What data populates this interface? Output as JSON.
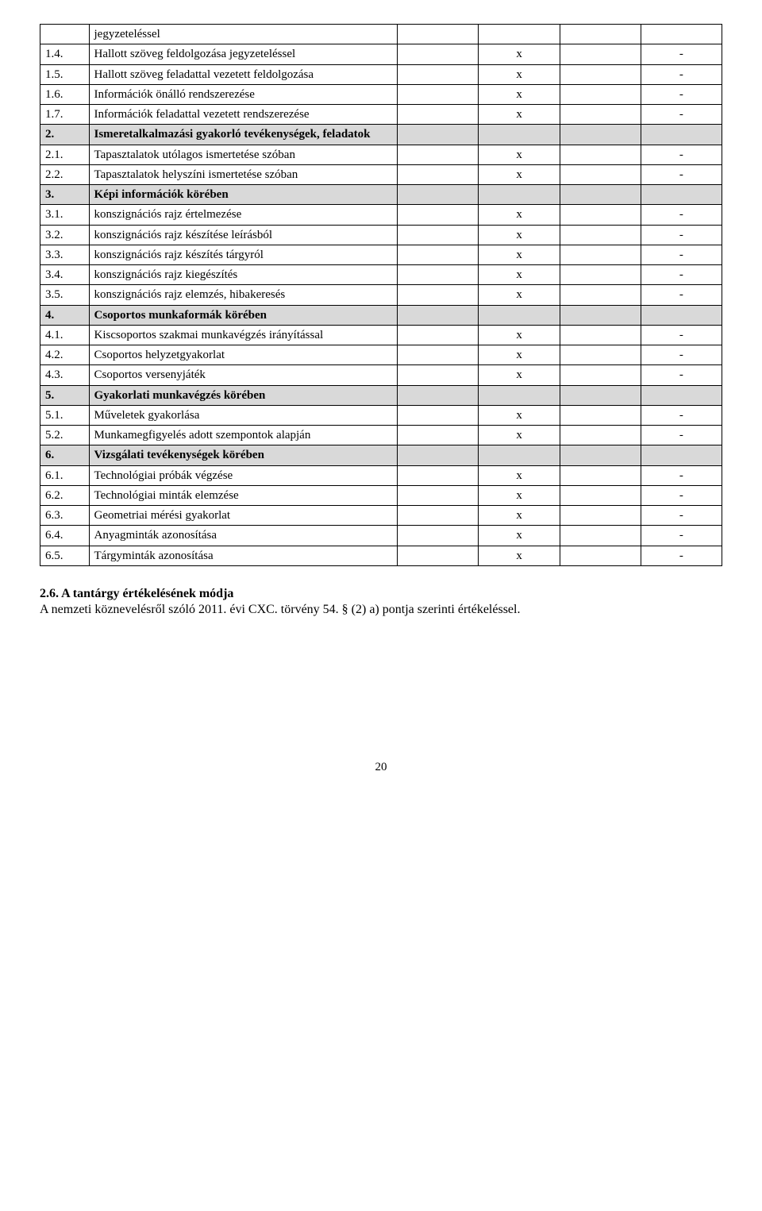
{
  "table": {
    "rows": [
      {
        "num": "",
        "desc": "jegyzeteléssel",
        "c1": "",
        "c2": "",
        "c3": "",
        "c4": "",
        "section": false
      },
      {
        "num": "1.4.",
        "desc": "Hallott szöveg feldolgozása jegyzeteléssel",
        "c1": "",
        "c2": "x",
        "c3": "",
        "c4": "-",
        "section": false
      },
      {
        "num": "1.5.",
        "desc": "Hallott szöveg feladattal vezetett feldolgozása",
        "c1": "",
        "c2": "x",
        "c3": "",
        "c4": "-",
        "section": false
      },
      {
        "num": "1.6.",
        "desc": "Információk önálló rendszerezése",
        "c1": "",
        "c2": "x",
        "c3": "",
        "c4": "-",
        "section": false
      },
      {
        "num": "1.7.",
        "desc": "Információk feladattal vezetett rendszerezése",
        "c1": "",
        "c2": "x",
        "c3": "",
        "c4": "-",
        "section": false
      },
      {
        "num": "2.",
        "desc": "Ismeretalkalmazási gyakorló tevékenységek, feladatok",
        "c1": "",
        "c2": "",
        "c3": "",
        "c4": "",
        "section": true
      },
      {
        "num": "2.1.",
        "desc": "Tapasztalatok utólagos ismertetése szóban",
        "c1": "",
        "c2": "x",
        "c3": "",
        "c4": "-",
        "section": false
      },
      {
        "num": "2.2.",
        "desc": "Tapasztalatok helyszíni ismertetése szóban",
        "c1": "",
        "c2": "x",
        "c3": "",
        "c4": "-",
        "section": false
      },
      {
        "num": "3.",
        "desc": "Képi információk körében",
        "c1": "",
        "c2": "",
        "c3": "",
        "c4": "",
        "section": true
      },
      {
        "num": "3.1.",
        "desc": "konszignációs rajz értelmezése",
        "c1": "",
        "c2": "x",
        "c3": "",
        "c4": "-",
        "section": false
      },
      {
        "num": "3.2.",
        "desc": "konszignációs rajz készítése leírásból",
        "c1": "",
        "c2": "x",
        "c3": "",
        "c4": "-",
        "section": false
      },
      {
        "num": "3.3.",
        "desc": "konszignációs rajz készítés tárgyról",
        "c1": "",
        "c2": "x",
        "c3": "",
        "c4": "-",
        "section": false
      },
      {
        "num": "3.4.",
        "desc": "konszignációs rajz kiegészítés",
        "c1": "",
        "c2": "x",
        "c3": "",
        "c4": "-",
        "section": false
      },
      {
        "num": "3.5.",
        "desc": "konszignációs rajz elemzés, hibakeresés",
        "c1": "",
        "c2": "x",
        "c3": "",
        "c4": "-",
        "section": false
      },
      {
        "num": "4.",
        "desc": "Csoportos munkaformák körében",
        "c1": "",
        "c2": "",
        "c3": "",
        "c4": "",
        "section": true
      },
      {
        "num": "4.1.",
        "desc": "Kiscsoportos szakmai munkavégzés irányítással",
        "c1": "",
        "c2": "x",
        "c3": "",
        "c4": "-",
        "section": false
      },
      {
        "num": "4.2.",
        "desc": "Csoportos helyzetgyakorlat",
        "c1": "",
        "c2": "x",
        "c3": "",
        "c4": "-",
        "section": false
      },
      {
        "num": "4.3.",
        "desc": "Csoportos versenyjáték",
        "c1": "",
        "c2": "x",
        "c3": "",
        "c4": "-",
        "section": false
      },
      {
        "num": "5.",
        "desc": "Gyakorlati munkavégzés körében",
        "c1": "",
        "c2": "",
        "c3": "",
        "c4": "",
        "section": true
      },
      {
        "num": "5.1.",
        "desc": "Műveletek gyakorlása",
        "c1": "",
        "c2": "x",
        "c3": "",
        "c4": "-",
        "section": false
      },
      {
        "num": "5.2.",
        "desc": "Munkamegfigyelés adott szempontok alapján",
        "c1": "",
        "c2": "x",
        "c3": "",
        "c4": "-",
        "section": false
      },
      {
        "num": "6.",
        "desc": "Vizsgálati tevékenységek körében",
        "c1": "",
        "c2": "",
        "c3": "",
        "c4": "",
        "section": true
      },
      {
        "num": "6.1.",
        "desc": "Technológiai próbák végzése",
        "c1": "",
        "c2": "x",
        "c3": "",
        "c4": "-",
        "section": false
      },
      {
        "num": "6.2.",
        "desc": "Technológiai minták elemzése",
        "c1": "",
        "c2": "x",
        "c3": "",
        "c4": "-",
        "section": false
      },
      {
        "num": "6.3.",
        "desc": "Geometriai mérési gyakorlat",
        "c1": "",
        "c2": "x",
        "c3": "",
        "c4": "-",
        "section": false
      },
      {
        "num": "6.4.",
        "desc": "Anyagminták azonosítása",
        "c1": "",
        "c2": "x",
        "c3": "",
        "c4": "-",
        "section": false
      },
      {
        "num": "6.5.",
        "desc": "Tárgyminták azonosítása",
        "c1": "",
        "c2": "x",
        "c3": "",
        "c4": "-",
        "section": false
      }
    ]
  },
  "footer": {
    "title": "2.6. A tantárgy értékelésének módja",
    "body": "A nemzeti köznevelésről szóló 2011. évi CXC. törvény 54. § (2) a) pontja szerinti értékeléssel."
  },
  "pageNumber": "20"
}
